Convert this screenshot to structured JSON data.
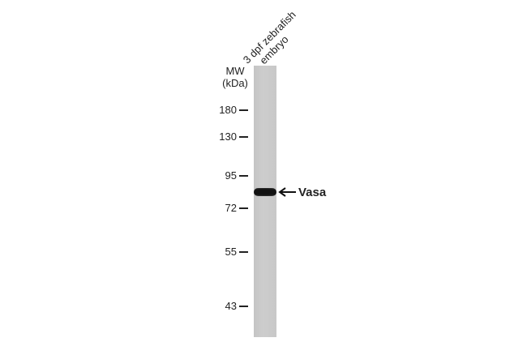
{
  "lane_label": {
    "line1": "3 dpf zebrafish",
    "line2": "embryo"
  },
  "mw_label": {
    "line1": "MW",
    "line2": "(kDa)"
  },
  "markers": [
    "180",
    "130",
    "95",
    "72",
    "55",
    "43"
  ],
  "target": "Vasa",
  "icons": {
    "arrow": "left-arrow-icon"
  }
}
